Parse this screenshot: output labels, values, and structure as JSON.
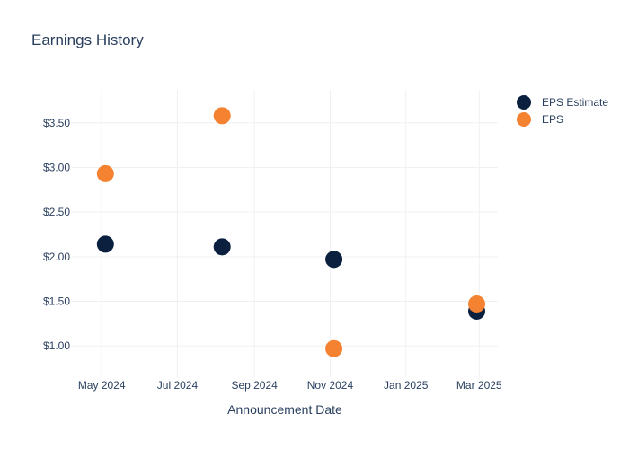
{
  "chart_data": {
    "type": "scatter",
    "title": "Earnings History",
    "xlabel": "Announcement Date",
    "ylabel": "",
    "x_ticks": [
      {
        "date": "2024-05-01",
        "label": "May 2024"
      },
      {
        "date": "2024-07-01",
        "label": "Jul 2024"
      },
      {
        "date": "2024-09-01",
        "label": "Sep 2024"
      },
      {
        "date": "2024-11-01",
        "label": "Nov 2024"
      },
      {
        "date": "2025-01-01",
        "label": "Jan 2025"
      },
      {
        "date": "2025-03-01",
        "label": "Mar 2025"
      }
    ],
    "y_ticks": [
      {
        "value": 1.0,
        "label": "$1.00"
      },
      {
        "value": 1.5,
        "label": "$1.50"
      },
      {
        "value": 2.0,
        "label": "$2.00"
      },
      {
        "value": 2.5,
        "label": "$2.50"
      },
      {
        "value": 3.0,
        "label": "$3.00"
      },
      {
        "value": 3.5,
        "label": "$3.50"
      }
    ],
    "xlim": [
      "2024-04-07",
      "2025-03-16"
    ],
    "ylim": [
      0.65,
      3.87
    ],
    "grid": true,
    "legend_position": "top-right",
    "series": [
      {
        "name": "EPS Estimate",
        "color": "#0b1f3f",
        "points": [
          {
            "x": "2024-05-04",
            "y": 2.14
          },
          {
            "x": "2024-08-06",
            "y": 2.11
          },
          {
            "x": "2024-11-04",
            "y": 1.97
          },
          {
            "x": "2025-02-27",
            "y": 1.39
          }
        ]
      },
      {
        "name": "EPS",
        "color": "#f58231",
        "points": [
          {
            "x": "2024-05-04",
            "y": 2.93
          },
          {
            "x": "2024-08-06",
            "y": 3.58
          },
          {
            "x": "2024-11-04",
            "y": 0.97
          },
          {
            "x": "2025-02-27",
            "y": 1.47
          }
        ]
      }
    ]
  }
}
